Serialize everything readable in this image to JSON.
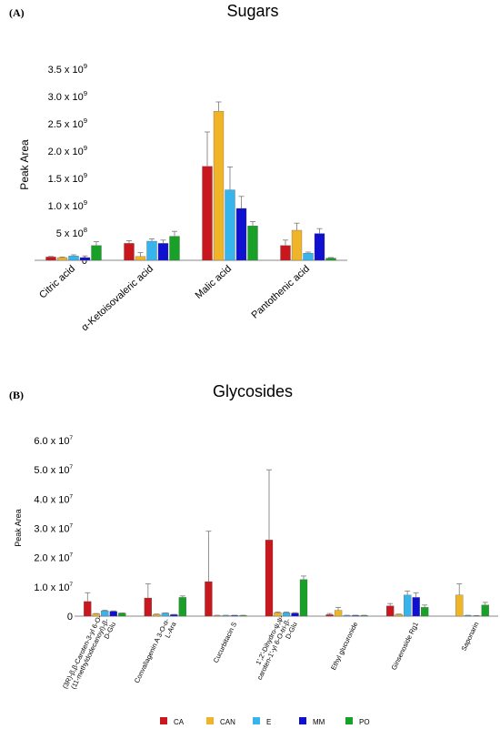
{
  "colors": {
    "CA": "#c8181e",
    "CAN": "#f0b428",
    "E": "#38b4ec",
    "MM": "#1010d0",
    "PO": "#18a028",
    "axis": "#888888",
    "error": "#777777"
  },
  "legend": {
    "items": [
      {
        "label": "CA",
        "color": "#c8181e"
      },
      {
        "label": "CAN",
        "color": "#f0b428"
      },
      {
        "label": "E",
        "color": "#38b4ec"
      },
      {
        "label": "MM",
        "color": "#1010d0"
      },
      {
        "label": "PO",
        "color": "#18a028"
      }
    ]
  },
  "chart_data": [
    {
      "panel": "(A)",
      "type": "bar",
      "title": "Sugars",
      "ylabel": "Peak Area",
      "xlabel": "",
      "ylim": [
        0,
        3500000000.0
      ],
      "yticks": [
        {
          "value": 0,
          "mantissa": "0",
          "exp": ""
        },
        {
          "value": 500000000.0,
          "mantissa": "5 x 10",
          "exp": "8"
        },
        {
          "value": 1000000000.0,
          "mantissa": "1.0 x 10",
          "exp": "9"
        },
        {
          "value": 1500000000.0,
          "mantissa": "1.5 x 10",
          "exp": "9"
        },
        {
          "value": 2000000000.0,
          "mantissa": "2.0 x 10",
          "exp": "9"
        },
        {
          "value": 2500000000.0,
          "mantissa": "2.5 x 10",
          "exp": "9"
        },
        {
          "value": 3000000000.0,
          "mantissa": "3.0 x 10",
          "exp": "9"
        },
        {
          "value": 3500000000.0,
          "mantissa": "3.5 x 10",
          "exp": "9"
        }
      ],
      "categories": [
        {
          "label": [
            "Citric acid"
          ]
        },
        {
          "label": [
            "α-Ketoisovaleric acid"
          ]
        },
        {
          "label": [
            "Malic acid"
          ]
        },
        {
          "label": [
            "Pantothenic acid"
          ]
        }
      ],
      "series": [
        {
          "name": "CA",
          "values": [
            60000000.0,
            310000000.0,
            1720000000.0,
            270000000.0
          ],
          "errors": [
            10000000.0,
            50000000.0,
            630000000.0,
            100000000.0
          ]
        },
        {
          "name": "CAN",
          "values": [
            50000000.0,
            70000000.0,
            2730000000.0,
            550000000.0
          ],
          "errors": [
            10000000.0,
            70000000.0,
            170000000.0,
            130000000.0
          ]
        },
        {
          "name": "E",
          "values": [
            80000000.0,
            350000000.0,
            1290000000.0,
            130000000.0
          ],
          "errors": [
            20000000.0,
            40000000.0,
            420000000.0,
            20000000.0
          ]
        },
        {
          "name": "MM",
          "values": [
            50000000.0,
            310000000.0,
            950000000.0,
            490000000.0
          ],
          "errors": [
            30000000.0,
            60000000.0,
            220000000.0,
            90000000.0
          ]
        },
        {
          "name": "PO",
          "values": [
            270000000.0,
            440000000.0,
            630000000.0,
            40000000.0
          ],
          "errors": [
            70000000.0,
            90000000.0,
            80000000.0,
            10000000.0
          ]
        }
      ]
    },
    {
      "panel": "(B)",
      "type": "bar",
      "title": "Glycosides",
      "ylabel": "Peak Area",
      "xlabel": "",
      "ylim": [
        0,
        60000000.0
      ],
      "yticks": [
        {
          "value": 0,
          "mantissa": "0",
          "exp": ""
        },
        {
          "value": 10000000.0,
          "mantissa": "1.0 x 10",
          "exp": "7"
        },
        {
          "value": 20000000.0,
          "mantissa": "2.0 x 10",
          "exp": "7"
        },
        {
          "value": 30000000.0,
          "mantissa": "3.0 x 10",
          "exp": "7"
        },
        {
          "value": 40000000.0,
          "mantissa": "4.0 x 10",
          "exp": "7"
        },
        {
          "value": 50000000.0,
          "mantissa": "5.0 x 10",
          "exp": "7"
        },
        {
          "value": 60000000.0,
          "mantissa": "6.0 x 10",
          "exp": "7"
        }
      ],
      "categories": [
        {
          "label": [
            "(3R)-β,β-Caroten-3-yl 6-O-",
            "(11-methyldodecanoyl)-β-",
            "D-Glu"
          ]
        },
        {
          "label": [
            "Convallagenin A 3-O-α-",
            "L-Ara"
          ]
        },
        {
          "label": [
            "Cucurbitacin S"
          ]
        },
        {
          "label": [
            "1',2'-Dihydro-ψ,ψ-",
            "caroten-1'-yl 6-O-tri-β-",
            "D-Glu"
          ]
        },
        {
          "label": [
            "Ethyl glucuronide"
          ]
        },
        {
          "label": [
            "Ginsenoside Rg1"
          ]
        },
        {
          "label": [
            "Saponarin"
          ]
        }
      ],
      "series": [
        {
          "name": "CA",
          "values": [
            5000000.0,
            6200000.0,
            11800000.0,
            26000000.0,
            500000.0,
            3500000.0,
            0
          ],
          "errors": [
            3000000.0,
            4800000.0,
            17200000.0,
            24000000.0,
            400000.0,
            800000.0,
            0
          ]
        },
        {
          "name": "CAN",
          "values": [
            800000.0,
            600000.0,
            200000.0,
            1200000.0,
            2000000.0,
            600000.0,
            7200000.0
          ],
          "errors": [
            100000.0,
            100000.0,
            100000.0,
            200000.0,
            1000000.0,
            100000.0,
            3800000.0
          ]
        },
        {
          "name": "E",
          "values": [
            1800000.0,
            1000000.0,
            200000.0,
            1200000.0,
            200000.0,
            7200000.0,
            200000.0
          ],
          "errors": [
            200000.0,
            100000.0,
            100000.0,
            200000.0,
            100000.0,
            1400000.0,
            100000.0
          ]
        },
        {
          "name": "MM",
          "values": [
            1600000.0,
            500000.0,
            200000.0,
            1000000.0,
            200000.0,
            6400000.0,
            100000.0
          ],
          "errors": [
            200000.0,
            100000.0,
            100000.0,
            200000.0,
            100000.0,
            1600000.0,
            100000.0
          ]
        },
        {
          "name": "PO",
          "values": [
            1000000.0,
            6400000.0,
            200000.0,
            12500000.0,
            200000.0,
            3000000.0,
            3800000.0
          ],
          "errors": [
            100000.0,
            500000.0,
            100000.0,
            1200000.0,
            100000.0,
            800000.0,
            900000.0
          ]
        }
      ]
    }
  ]
}
